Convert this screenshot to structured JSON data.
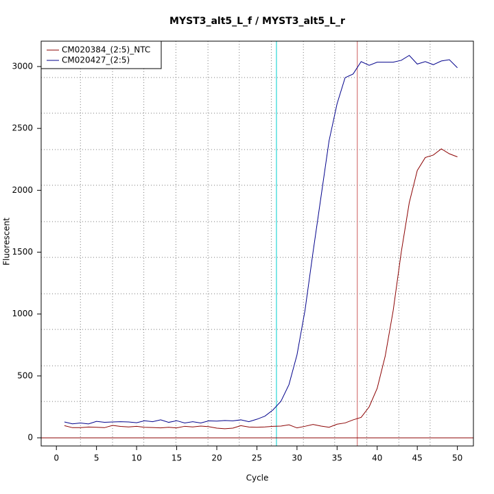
{
  "chart_data": {
    "type": "line",
    "title": "MYST3_alt5_L_f / MYST3_alt5_L_r",
    "x_label": "Cycle",
    "y_label": "Fluorescent",
    "x": [
      1,
      2,
      3,
      4,
      5,
      6,
      7,
      8,
      9,
      10,
      11,
      12,
      13,
      14,
      15,
      16,
      17,
      18,
      19,
      20,
      21,
      22,
      23,
      24,
      25,
      26,
      27,
      28,
      29,
      30,
      31,
      32,
      33,
      34,
      35,
      36,
      37,
      38,
      39,
      40,
      41,
      42,
      43,
      44,
      45,
      46,
      47,
      48,
      49,
      50
    ],
    "series": [
      {
        "name": "CM020384_(2:5)_NTC",
        "color": "#8b0000",
        "values": [
          98,
          82,
          82,
          87,
          85,
          82,
          100,
          92,
          88,
          93,
          85,
          83,
          80,
          85,
          80,
          93,
          88,
          95,
          90,
          78,
          73,
          78,
          98,
          87,
          85,
          88,
          93,
          95,
          105,
          80,
          93,
          108,
          95,
          85,
          110,
          120,
          145,
          165,
          250,
          400,
          660,
          1030,
          1500,
          1900,
          2160,
          2265,
          2285,
          2335,
          2295,
          2270
        ]
      },
      {
        "name": "CM020427_(2:5)",
        "color": "#00008b",
        "values": [
          128,
          113,
          120,
          112,
          133,
          125,
          128,
          130,
          128,
          122,
          138,
          130,
          145,
          125,
          138,
          120,
          130,
          120,
          137,
          135,
          140,
          137,
          145,
          130,
          150,
          175,
          225,
          295,
          430,
          670,
          1030,
          1500,
          1950,
          2400,
          2700,
          2910,
          2940,
          3040,
          3010,
          3035,
          3035,
          3035,
          3050,
          3090,
          3020,
          3040,
          3015,
          3045,
          3055,
          2990
        ]
      }
    ],
    "xlim": [
      -1.9,
      52
    ],
    "ylim": [
      -66,
      3205
    ],
    "xticks": [
      0,
      5,
      10,
      15,
      20,
      25,
      30,
      35,
      40,
      45,
      50
    ],
    "yticks": [
      0,
      500,
      1000,
      1500,
      2000,
      2500,
      3000
    ],
    "grid": true,
    "xgrid": [
      3,
      7,
      10.9,
      14.9,
      18.9,
      22.8,
      26.8,
      30.8,
      34.7,
      38.7,
      42.7,
      46.6
    ],
    "ygrid": [
      294,
      582,
      876,
      1164,
      1458,
      1747,
      2041,
      2329,
      2623,
      2911
    ],
    "vlines": [
      {
        "value": 27.44,
        "color": "#00cdcd"
      },
      {
        "value": 37.52,
        "color": "#cd5c5c"
      }
    ],
    "hline": {
      "value": 0,
      "color": "#8b0000"
    },
    "legend": "top-left"
  }
}
